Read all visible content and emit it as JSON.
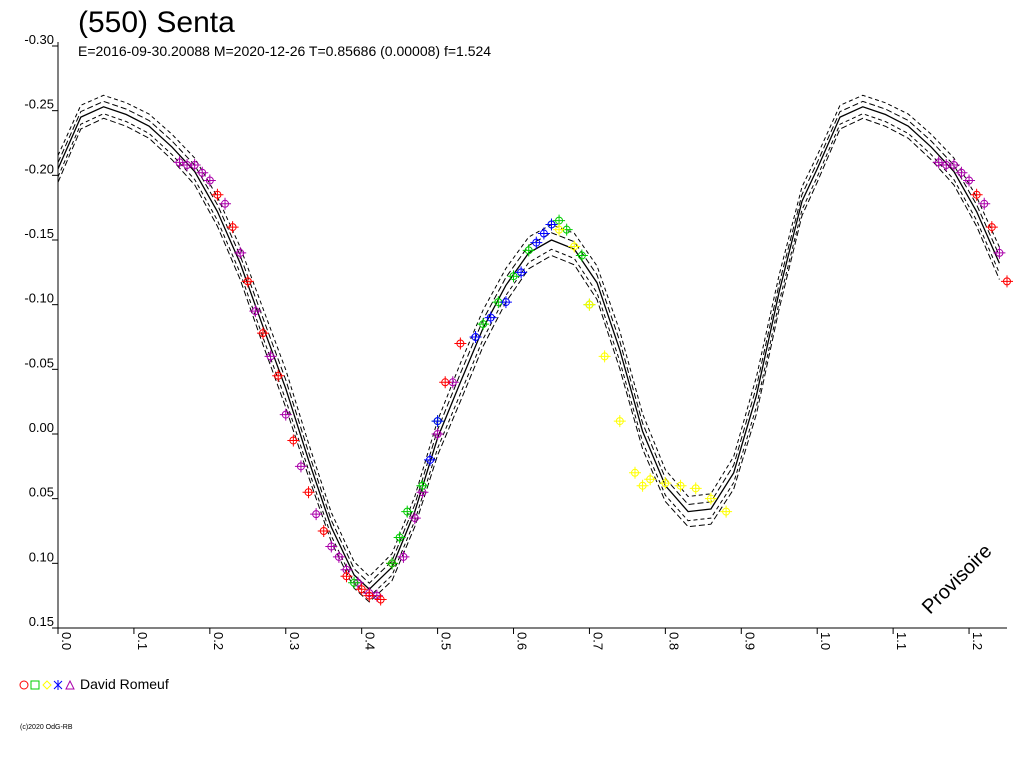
{
  "chart_data": {
    "type": "scatter",
    "title": "(550) Senta",
    "subtitle": "E=2016-09-30.20088    M=2020-12-26    T=0.85686 (0.00008)    f=1.524",
    "watermark": "Provisoire",
    "credit": "(c)2020 OdG-RB",
    "xlabel": "",
    "ylabel": "",
    "xlim": [
      0.0,
      1.25
    ],
    "ylim": [
      -0.3,
      0.15
    ],
    "y_inverted": true,
    "grid": false,
    "x_ticks": [
      "0.0",
      "0.1",
      "0.2",
      "0.3",
      "0.4",
      "0.5",
      "0.6",
      "0.7",
      "0.8",
      "0.9",
      "1.0",
      "1.1",
      "1.2"
    ],
    "y_ticks": [
      "-0.30",
      "-0.25",
      "-0.20",
      "-0.15",
      "-0.10",
      "-0.05",
      "0.00",
      "0.05",
      "0.10",
      "0.15"
    ],
    "legend": {
      "placement": "bottom-left",
      "label": "David Romeuf",
      "symbols": [
        {
          "shape": "circle",
          "color": "#ff0000"
        },
        {
          "shape": "square",
          "color": "#00cc00"
        },
        {
          "shape": "diamond",
          "color": "#ffff00"
        },
        {
          "shape": "star",
          "color": "#0000ff"
        },
        {
          "shape": "triangle",
          "color": "#aa00aa"
        }
      ]
    },
    "fit_curve": {
      "phase": [
        0.0,
        0.03,
        0.06,
        0.09,
        0.12,
        0.15,
        0.18,
        0.21,
        0.24,
        0.27,
        0.3,
        0.33,
        0.36,
        0.39,
        0.41,
        0.44,
        0.47,
        0.5,
        0.53,
        0.56,
        0.59,
        0.62,
        0.65,
        0.68,
        0.71,
        0.74,
        0.77,
        0.8,
        0.83,
        0.86,
        0.89,
        0.92,
        0.95,
        0.98,
        1.0
      ],
      "mag": [
        -0.205,
        -0.245,
        -0.253,
        -0.247,
        -0.238,
        -0.222,
        -0.203,
        -0.172,
        -0.132,
        -0.083,
        -0.035,
        0.02,
        0.072,
        0.109,
        0.12,
        0.103,
        0.06,
        0.003,
        -0.04,
        -0.082,
        -0.115,
        -0.14,
        -0.15,
        -0.143,
        -0.117,
        -0.065,
        -0.002,
        0.04,
        0.06,
        0.058,
        0.03,
        -0.03,
        -0.11,
        -0.18,
        -0.205
      ],
      "envelope_offsets": [
        -0.015,
        -0.007,
        0.009,
        0.015
      ]
    },
    "series": [
      {
        "name": "",
        "color": "#aa00aa",
        "x": [
          0.16,
          0.17,
          0.18,
          0.19,
          0.2,
          0.22,
          0.24,
          0.26,
          0.28,
          0.3,
          0.32,
          0.34,
          0.36,
          0.37,
          0.38,
          0.395,
          0.41,
          0.42,
          0.455,
          0.47,
          0.48,
          0.5,
          0.52
        ],
        "y": [
          -0.21,
          -0.208,
          -0.208,
          -0.202,
          -0.196,
          -0.178,
          -0.14,
          -0.095,
          -0.06,
          -0.015,
          0.025,
          0.062,
          0.087,
          0.095,
          0.105,
          0.115,
          0.123,
          0.125,
          0.095,
          0.065,
          0.045,
          0.0,
          -0.04
        ]
      },
      {
        "name": "",
        "color": "#ff0000",
        "x": [
          0.21,
          0.23,
          0.25,
          0.27,
          0.29,
          0.31,
          0.33,
          0.35,
          0.38,
          0.4,
          0.41,
          0.425,
          0.44,
          0.51,
          0.53
        ],
        "y": [
          -0.185,
          -0.16,
          -0.118,
          -0.078,
          -0.045,
          0.005,
          0.045,
          0.075,
          0.11,
          0.12,
          0.125,
          0.128,
          0.1,
          -0.04,
          -0.07
        ]
      },
      {
        "name": "",
        "color": "#00cc00",
        "x": [
          0.39,
          0.44,
          0.45,
          0.46,
          0.48,
          0.5,
          0.56,
          0.58,
          0.6,
          0.62,
          0.65,
          0.66,
          0.67,
          0.69,
          0.7
        ],
        "y": [
          0.115,
          0.1,
          0.08,
          0.06,
          0.04,
          -0.01,
          -0.085,
          -0.102,
          -0.122,
          -0.142,
          -0.162,
          -0.165,
          -0.158,
          -0.138,
          -0.1
        ]
      },
      {
        "name": "",
        "color": "#0000ff",
        "x": [
          0.49,
          0.5,
          0.55,
          0.57,
          0.59,
          0.61,
          0.63,
          0.64,
          0.65
        ],
        "y": [
          0.02,
          -0.01,
          -0.075,
          -0.09,
          -0.102,
          -0.125,
          -0.148,
          -0.155,
          -0.162
        ]
      },
      {
        "name": "",
        "color": "#ffff00",
        "x": [
          0.66,
          0.68,
          0.7,
          0.72,
          0.74,
          0.76,
          0.77,
          0.78,
          0.8,
          0.82,
          0.84,
          0.86,
          0.88
        ],
        "y": [
          -0.158,
          -0.145,
          -0.1,
          -0.06,
          -0.01,
          0.03,
          0.04,
          0.035,
          0.038,
          0.04,
          0.042,
          0.05,
          0.06
        ]
      }
    ]
  }
}
